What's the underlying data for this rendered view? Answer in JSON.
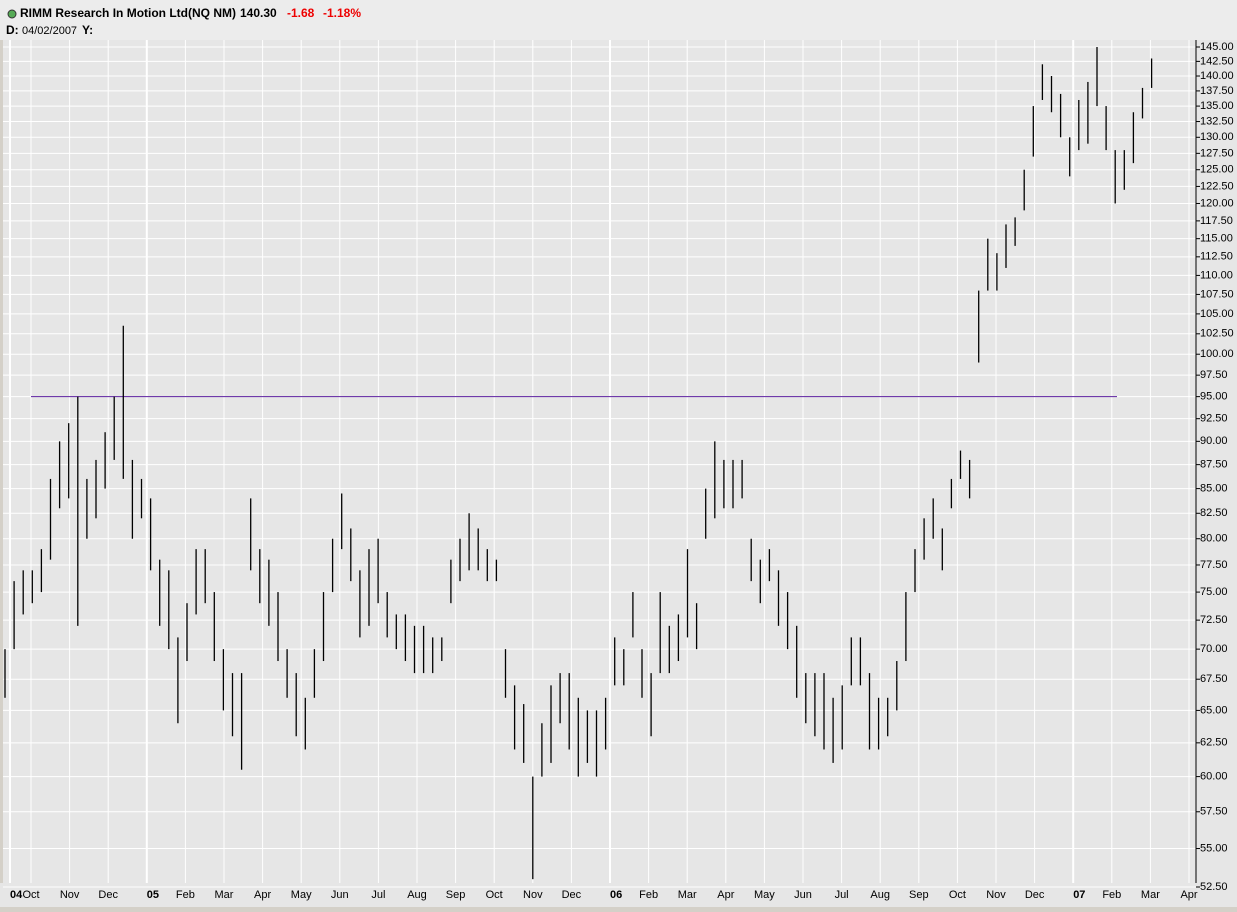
{
  "header": {
    "symbol": "RIMM Research In Motion Ltd(NQ NM)",
    "last": "140.30",
    "change": "-1.68",
    "change_pct": "-1.18%",
    "date_label": "D:",
    "date": "04/02/2007",
    "y_label": "Y:"
  },
  "chart_data": {
    "type": "range-bar",
    "log_scale": true,
    "grid": true,
    "color": "#000000",
    "background": "#e6e6e6",
    "x_labels": [
      "04",
      "Oct",
      "Nov",
      "Dec",
      "05",
      "Feb",
      "Mar",
      "Apr",
      "May",
      "Jun",
      "Jul",
      "Aug",
      "Sep",
      "Oct",
      "Nov",
      "Dec",
      "06",
      "Feb",
      "Mar",
      "Apr",
      "May",
      "Jun",
      "Jul",
      "Aug",
      "Sep",
      "Oct",
      "Nov",
      "Dec",
      "07",
      "Feb",
      "Mar",
      "Apr"
    ],
    "ylim": [
      52.5,
      145
    ],
    "yticks": [
      {
        "value": 52.5,
        "label": "52.50"
      },
      {
        "value": 55,
        "label": "55.00"
      },
      {
        "value": 57.5,
        "label": "57.50"
      },
      {
        "value": 60,
        "label": "60.00"
      },
      {
        "value": 62.5,
        "label": "62.50"
      },
      {
        "value": 65,
        "label": "65.00"
      },
      {
        "value": 67.5,
        "label": "67.50"
      },
      {
        "value": 70,
        "label": "70.00"
      },
      {
        "value": 72.5,
        "label": "72.50"
      },
      {
        "value": 75,
        "label": "75.00"
      },
      {
        "value": 77.5,
        "label": "77.50"
      },
      {
        "value": 80,
        "label": "80.00"
      },
      {
        "value": 82.5,
        "label": "82.50"
      },
      {
        "value": 85,
        "label": "85.00"
      },
      {
        "value": 87.5,
        "label": "87.50"
      },
      {
        "value": 90,
        "label": "90.00"
      },
      {
        "value": 92.5,
        "label": "92.50"
      },
      {
        "value": 95,
        "label": "95.00"
      },
      {
        "value": 97.5,
        "label": "97.50"
      },
      {
        "value": 100,
        "label": "100.00"
      },
      {
        "value": 102.5,
        "label": "102.50"
      },
      {
        "value": 105,
        "label": "105.00"
      },
      {
        "value": 107.5,
        "label": "107.50"
      },
      {
        "value": 110,
        "label": "110.00"
      },
      {
        "value": 112.5,
        "label": "112.50"
      },
      {
        "value": 115,
        "label": "115.00"
      },
      {
        "value": 117.5,
        "label": "117.50"
      },
      {
        "value": 120,
        "label": "120.00"
      },
      {
        "value": 122.5,
        "label": "122.50"
      },
      {
        "value": 125,
        "label": "125.00"
      },
      {
        "value": 127.5,
        "label": "127.50"
      },
      {
        "value": 130,
        "label": "130.00"
      },
      {
        "value": 132.5,
        "label": "132.50"
      },
      {
        "value": 135,
        "label": "135.00"
      },
      {
        "value": 137.5,
        "label": "137.50"
      },
      {
        "value": 140,
        "label": "140.00"
      },
      {
        "value": 142.5,
        "label": "142.50"
      },
      {
        "value": 145,
        "label": "145.00"
      }
    ],
    "high": [
      70,
      76,
      77,
      77,
      79,
      86,
      90,
      92,
      95,
      86,
      88,
      91,
      95,
      103.5,
      88,
      86,
      84,
      78,
      77,
      71,
      74,
      79,
      79,
      75,
      70,
      68,
      68,
      84,
      79,
      78,
      75,
      70,
      68,
      66,
      70,
      75,
      80,
      84.5,
      81,
      77,
      79,
      80,
      75,
      73,
      73,
      72,
      72,
      71,
      71,
      78,
      80,
      82.5,
      81,
      79,
      78,
      70,
      67,
      65.5,
      60,
      64,
      67,
      68,
      68,
      66,
      65,
      65,
      66,
      71,
      70,
      75,
      70,
      68,
      75,
      72,
      73,
      79,
      74,
      85,
      90,
      88,
      88,
      88,
      80,
      78,
      79,
      77,
      75,
      72,
      68,
      68,
      68,
      66,
      67,
      71,
      71,
      68,
      66,
      66,
      69,
      75,
      79,
      82,
      84,
      81,
      86,
      89,
      88,
      108,
      115,
      113,
      117,
      118,
      125,
      135,
      142,
      140,
      137,
      130,
      136,
      139,
      145,
      135,
      128,
      128,
      134,
      138,
      143
    ],
    "low": [
      66,
      70,
      73,
      74,
      75,
      78,
      83,
      84,
      72,
      80,
      82,
      85,
      88,
      86,
      80,
      82,
      77,
      72,
      70,
      64,
      69,
      73,
      74,
      69,
      65,
      63,
      60.5,
      77,
      74,
      72,
      69,
      66,
      63,
      62,
      66,
      69,
      75,
      79,
      76,
      71,
      72,
      74,
      71,
      70,
      69,
      68,
      68,
      68,
      69,
      74,
      76,
      77,
      77,
      76,
      76,
      66,
      62,
      61,
      53,
      60,
      61,
      64,
      62,
      60,
      61,
      60,
      62,
      67,
      67,
      71,
      66,
      63,
      68,
      68,
      69,
      71,
      70,
      80,
      82,
      83,
      83,
      84,
      76,
      74,
      76,
      72,
      70,
      66,
      64,
      63,
      62,
      61,
      62,
      67,
      67,
      62,
      62,
      63,
      65,
      69,
      75,
      78,
      80,
      77,
      83,
      86,
      84,
      99,
      108,
      108,
      111,
      114,
      119,
      127,
      136,
      134,
      130,
      124,
      128,
      129,
      135,
      128,
      120,
      122,
      126,
      133,
      138
    ],
    "reference_line": {
      "value": 95,
      "color": "#5b1f9e"
    }
  }
}
